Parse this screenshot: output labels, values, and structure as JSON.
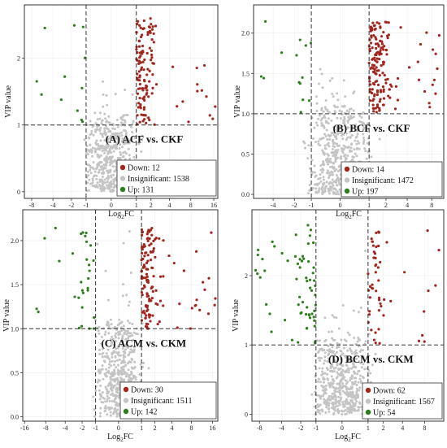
{
  "colors": {
    "down": "#a0261e",
    "insignificant": "#c4c4c4",
    "up": "#2f7d1e",
    "frame": "#333333",
    "grid": "#ececec",
    "dashed": "#333333"
  },
  "chart_data": [
    {
      "type": "scatter",
      "title": "(A) ACF vs. CKF",
      "xlabel_base": "Log",
      "xlabel_sub": "2",
      "xlabel_tail": "FC",
      "ylabel": "VIP value",
      "xticks": [
        -8,
        -4,
        -2,
        -1,
        0,
        1,
        2,
        4,
        8,
        16
      ],
      "xtick_labels": [
        "-8",
        "-4",
        "-2",
        "-1",
        "0",
        "1",
        "2",
        "4",
        "8",
        "16"
      ],
      "yticks": [
        0,
        1,
        2
      ],
      "ylim": [
        -0.1,
        2.8
      ],
      "thresholds": {
        "x": [
          -1,
          1
        ],
        "y": 1
      },
      "legend": [
        {
          "key": "down",
          "label": "Down: 12"
        },
        {
          "key": "insignificant",
          "label": "Insignificant: 1538"
        },
        {
          "key": "up",
          "label": "Up: 131"
        }
      ],
      "counts": {
        "down": 12,
        "insignificant": 1538,
        "up": 131
      }
    },
    {
      "type": "scatter",
      "title": "(B) BCF vs. CKF",
      "xlabel_base": "Log",
      "xlabel_sub": "2",
      "xlabel_tail": "FC",
      "ylabel": "VIP value",
      "xticks": [
        -4,
        -2,
        -1,
        0,
        1,
        2,
        4,
        8
      ],
      "xtick_labels": [
        "-4",
        "-2",
        "-1",
        "0",
        "1",
        "2",
        "4",
        "8"
      ],
      "yticks": [
        0,
        0.5,
        1.0,
        1.5,
        2.0
      ],
      "ytick_labels": [
        "0.0",
        "0.5",
        "1.0",
        "1.5",
        "2.0"
      ],
      "ylim": [
        -0.05,
        2.35
      ],
      "thresholds": {
        "x": [
          -1,
          1
        ],
        "y": 1
      },
      "legend": [
        {
          "key": "down",
          "label": "Down: 14"
        },
        {
          "key": "insignificant",
          "label": "Insignificant: 1472"
        },
        {
          "key": "up",
          "label": "Up: 197"
        }
      ],
      "counts": {
        "down": 14,
        "insignificant": 1472,
        "up": 197
      }
    },
    {
      "type": "scatter",
      "title": "(C) ACM vs. CKM",
      "xlabel_base": "Log",
      "xlabel_sub": "2",
      "xlabel_tail": "FC",
      "ylabel": "VIP value",
      "xticks": [
        -16,
        -8,
        -4,
        -2,
        -1,
        0,
        1,
        2,
        4,
        8,
        16
      ],
      "xtick_labels": [
        "-16",
        "-8",
        "-4",
        "-2",
        "-1",
        "0",
        "1",
        "2",
        "4",
        "8",
        "16"
      ],
      "yticks": [
        0,
        0.5,
        1.0,
        1.5,
        2.0
      ],
      "ytick_labels": [
        "0.0",
        "0.5",
        "1.0",
        "1.5",
        "2.0"
      ],
      "ylim": [
        -0.05,
        2.35
      ],
      "thresholds": {
        "x": [
          -1,
          1
        ],
        "y": 1
      },
      "legend": [
        {
          "key": "down",
          "label": "Down: 30"
        },
        {
          "key": "insignificant",
          "label": "Insignificant: 1511"
        },
        {
          "key": "up",
          "label": "Up: 142"
        }
      ],
      "counts": {
        "down": 30,
        "insignificant": 1511,
        "up": 142
      }
    },
    {
      "type": "scatter",
      "title": "(D) BCM vs. CKM",
      "xlabel_base": "Log",
      "xlabel_sub": "2",
      "xlabel_tail": "FC",
      "ylabel": "VIP value",
      "xticks": [
        -8,
        -4,
        -2,
        -1,
        0,
        1,
        2,
        4,
        8
      ],
      "xtick_labels": [
        "-8",
        "-4",
        "-2",
        "-1",
        "0",
        "1",
        "2",
        "4",
        "8"
      ],
      "yticks": [
        0,
        1,
        2
      ],
      "ylim": [
        -0.1,
        2.95
      ],
      "thresholds": {
        "x": [
          -1,
          1
        ],
        "y": 1
      },
      "legend": [
        {
          "key": "down",
          "label": "Down: 62"
        },
        {
          "key": "insignificant",
          "label": "Insignificant: 1567"
        },
        {
          "key": "up",
          "label": "Up: 54"
        }
      ],
      "counts": {
        "down": 62,
        "insignificant": 1567,
        "up": 54
      }
    }
  ]
}
